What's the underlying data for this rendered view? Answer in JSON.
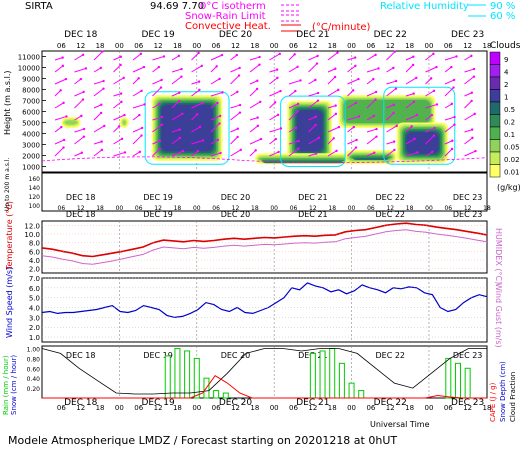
{
  "header": {
    "station": "SIRTA",
    "coords": "94.69 7.70",
    "legend_left": [
      {
        "label": "0°C isotherm",
        "color": "#ff00ff",
        "style": "dashed"
      },
      {
        "label": "Snow-Rain Limit",
        "color": "#ff00ff",
        "style": "dashed"
      },
      {
        "label": "Convective Heat.",
        "color": "#ff0000",
        "style": "solid"
      }
    ],
    "legend_unit": "(°C/minute)",
    "legend_right_title": "Relative Humidity",
    "legend_right": [
      {
        "label": "90 %",
        "color": "#00e5ff"
      },
      {
        "label": "60 %",
        "color": "#00e5ff"
      }
    ]
  },
  "time_axis": {
    "hour_ticks": [
      "06",
      "12",
      "18",
      "00",
      "06",
      "12",
      "18",
      "00",
      "06",
      "12",
      "18",
      "00",
      "06",
      "12",
      "18",
      "00",
      "06",
      "12",
      "18",
      "00",
      "06",
      "12",
      "18"
    ],
    "days": [
      "DEC 18",
      "DEC 19",
      "DEC 20",
      "DEC 21",
      "DEC 22",
      "DEC 23"
    ],
    "xlabel": "Universal Time"
  },
  "footer": "Modele Atmospherique LMDZ / Forecast starting on 20201218 at 0hUT",
  "colors": {
    "cloud_scale": [
      "#ffff66",
      "#c6ee5a",
      "#8fd35a",
      "#4fb04e",
      "#2e8b57",
      "#1f6b6b",
      "#3d3d9a",
      "#6b2bb0",
      "#a020f0",
      "#c000ff"
    ],
    "temperature": "#dd0000",
    "humidex": "#cc66cc",
    "wind": "#0000cc",
    "rain": "#00cc00",
    "snow": "#000000",
    "cape": "#ff0000",
    "rh": "#00e5ff",
    "arrows": "#ff00ff"
  },
  "chart_data": [
    {
      "type": "heatmap",
      "panel": "clouds",
      "ylabel": "Height (m a.s.l.)",
      "ylabel2": "Up to 200 m a.s.l.",
      "yticks": [
        "11000",
        "10000",
        "9000",
        "8000",
        "7000",
        "6000",
        "5000",
        "4000",
        "3000",
        "2000",
        "1000"
      ],
      "yticks_low": [
        "160",
        "140",
        "120",
        "100"
      ],
      "colorbar_title": "Clouds",
      "colorbar_ticks": [
        "9",
        "4",
        "2",
        "1",
        "0.5",
        "0.2",
        "0.1",
        "0.05",
        "0.02",
        "0.01"
      ],
      "colorbar_unit": "(g/kg)",
      "cloud_blobs": [
        {
          "t_start": 6,
          "t_end": 12,
          "base_m": 4500,
          "top_m": 5500,
          "level": 2
        },
        {
          "t_start": 24,
          "t_end": 27,
          "base_m": 4500,
          "top_m": 5500,
          "level": 2
        },
        {
          "t_start": 34,
          "t_end": 56,
          "base_m": 1500,
          "top_m": 7500,
          "level": 6
        },
        {
          "t_start": 76,
          "t_end": 90,
          "base_m": 1500,
          "top_m": 7000,
          "level": 6
        },
        {
          "t_start": 66,
          "t_end": 96,
          "base_m": 1200,
          "top_m": 2200,
          "level": 5
        },
        {
          "t_start": 92,
          "t_end": 122,
          "base_m": 4500,
          "top_m": 7500,
          "level": 3
        },
        {
          "t_start": 110,
          "t_end": 126,
          "base_m": 1300,
          "top_m": 5000,
          "level": 6
        },
        {
          "t_start": 94,
          "t_end": 110,
          "base_m": 1200,
          "top_m": 2500,
          "level": 5
        }
      ]
    },
    {
      "type": "line",
      "panel": "temperature",
      "ylabel": "Temperature (°C)",
      "ylabel2": "HUMIDEX (°C)",
      "yticks": [
        "12.0",
        "10.0",
        "8.0",
        "6.0",
        "4.0",
        "2.0"
      ],
      "ylim": [
        1.0,
        13.0
      ],
      "series": [
        {
          "name": "Temperature",
          "values": [
            6.8,
            6.5,
            6.0,
            5.6,
            5.0,
            4.8,
            5.2,
            5.6,
            6.0,
            6.5,
            7.0,
            8.0,
            8.6,
            8.4,
            8.2,
            8.5,
            8.3,
            8.5,
            8.8,
            9.0,
            8.8,
            9.0,
            9.2,
            9.1,
            9.3,
            9.5,
            9.6,
            9.5,
            9.7,
            9.8,
            10.5,
            10.8,
            11.0,
            11.5,
            12.0,
            12.3,
            12.5,
            12.2,
            12.0,
            11.6,
            11.3,
            11.0,
            10.6,
            10.2,
            9.8
          ]
        },
        {
          "name": "HUMIDEX",
          "values": [
            5.0,
            4.7,
            4.2,
            3.8,
            3.2,
            3.0,
            3.4,
            3.8,
            4.3,
            4.8,
            5.3,
            6.3,
            7.0,
            6.8,
            6.6,
            6.9,
            6.7,
            6.9,
            7.2,
            7.4,
            7.2,
            7.4,
            7.6,
            7.5,
            7.7,
            7.9,
            8.0,
            7.9,
            8.1,
            8.2,
            8.9,
            9.2,
            9.5,
            10.0,
            10.5,
            10.8,
            11.0,
            10.6,
            10.4,
            10.0,
            9.7,
            9.4,
            9.0,
            8.6,
            8.2
          ]
        }
      ]
    },
    {
      "type": "line",
      "panel": "wind",
      "ylabel": "Wind Speed (m/s)",
      "ylabel2": "Wind Gust (m/s)",
      "yticks": [
        "7.0",
        "6.0",
        "5.0",
        "4.0",
        "3.0",
        "2.0",
        "1.0"
      ],
      "ylim": [
        0.5,
        7.0
      ],
      "series": [
        {
          "name": "Wind Speed",
          "values": [
            3.5,
            3.6,
            3.4,
            3.5,
            3.5,
            3.6,
            3.7,
            3.8,
            4.0,
            4.2,
            3.6,
            3.5,
            3.7,
            4.2,
            4.0,
            3.8,
            3.2,
            3.0,
            3.1,
            3.4,
            3.8,
            4.5,
            4.3,
            3.8,
            3.6,
            4.0,
            3.5,
            3.4,
            3.7,
            4.0,
            4.5,
            5.0,
            6.0,
            5.8,
            6.5,
            6.2,
            6.0,
            5.6,
            5.8,
            5.4,
            5.7,
            6.3,
            6.0,
            5.8,
            5.5,
            6.0,
            5.9,
            6.1,
            6.0,
            5.5,
            5.3,
            4.0,
            3.6,
            3.8,
            4.5,
            5.0,
            5.3,
            5.1
          ]
        }
      ]
    },
    {
      "type": "bar",
      "panel": "precip",
      "ylabel": "Rain (mm / hour)",
      "ylabel2": "Snow (cm / hour)",
      "ylabel3": "CAPE (J / g)",
      "ylabel4": "Snow Depth (cm)",
      "ylabel5": "Cloud Fraction",
      "yticks": [
        "1.00",
        "0.80",
        "0.60",
        "0.40",
        "0.20"
      ],
      "ylim": [
        0,
        1.05
      ],
      "series": [
        {
          "name": "Rain",
          "t_hours": [
            39,
            42,
            45,
            48,
            51,
            54,
            57,
            84,
            87,
            90,
            93,
            96,
            99,
            126,
            129,
            132
          ],
          "values": [
            0.85,
            1.0,
            0.95,
            0.8,
            0.4,
            0.15,
            0.1,
            0.9,
            0.95,
            1.0,
            0.7,
            0.3,
            0.15,
            0.8,
            0.7,
            0.6
          ]
        },
        {
          "name": "Cloud fraction",
          "values": [
            1.0,
            0.9,
            0.6,
            0.35,
            0.1,
            0.08,
            0.08,
            0.1,
            0.1,
            0.15,
            0.5,
            0.9,
            1.0,
            1.0,
            0.95,
            1.0,
            1.0,
            0.9,
            0.6,
            0.3,
            0.2,
            0.5,
            0.8,
            1.0,
            1.0
          ]
        },
        {
          "name": "CAPE",
          "values": [
            0,
            0,
            0,
            0,
            0,
            0,
            0,
            0,
            0,
            0,
            0,
            0,
            0,
            0.1,
            0.45,
            0.3,
            0.1,
            0,
            0,
            0,
            0,
            0,
            0,
            0,
            0,
            0,
            0,
            0,
            0,
            0,
            0,
            0,
            0.05,
            0.02,
            0,
            0,
            0
          ]
        }
      ]
    }
  ]
}
